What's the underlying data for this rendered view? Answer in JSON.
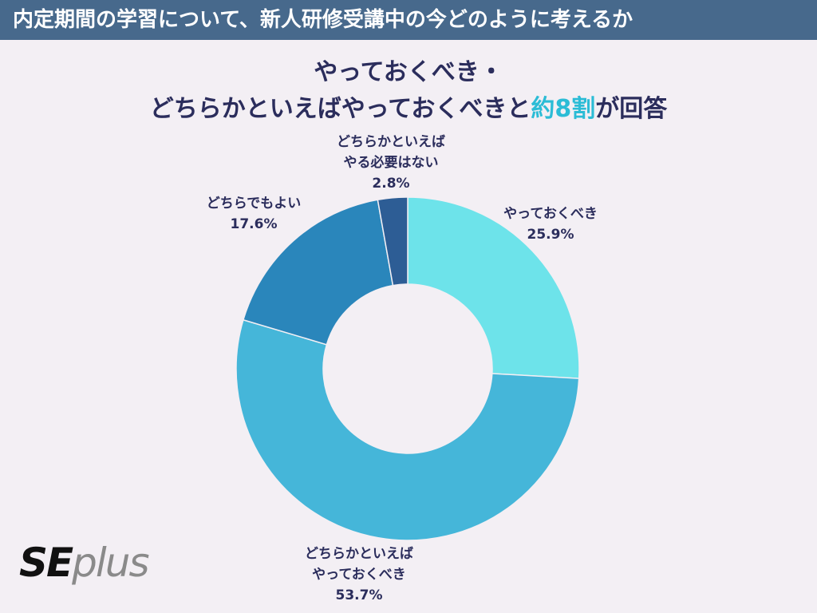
{
  "header": {
    "title": "内定期間の学習について、新人研修受講中の今どのように考えるか"
  },
  "chart_data": {
    "type": "donut",
    "title_parts": {
      "line1": "やっておくべき・",
      "line2_before": "どちらかといえばやっておくべきと",
      "highlight": "約8割",
      "line2_after": "が回答"
    },
    "categories": [
      "やっておくべき",
      "どちらかといえば\nやっておくべき",
      "どちらでもよい",
      "どちらかといえば\nやる必要はない"
    ],
    "values": [
      25.9,
      53.7,
      17.6,
      2.8
    ],
    "value_labels": [
      "25.9%",
      "53.7%",
      "17.6%",
      "2.8%"
    ],
    "colors": [
      "#6de3ea",
      "#45b6d9",
      "#2a86bb",
      "#2d5d95"
    ]
  },
  "logo": {
    "bold": "SE",
    "light": "plus"
  }
}
